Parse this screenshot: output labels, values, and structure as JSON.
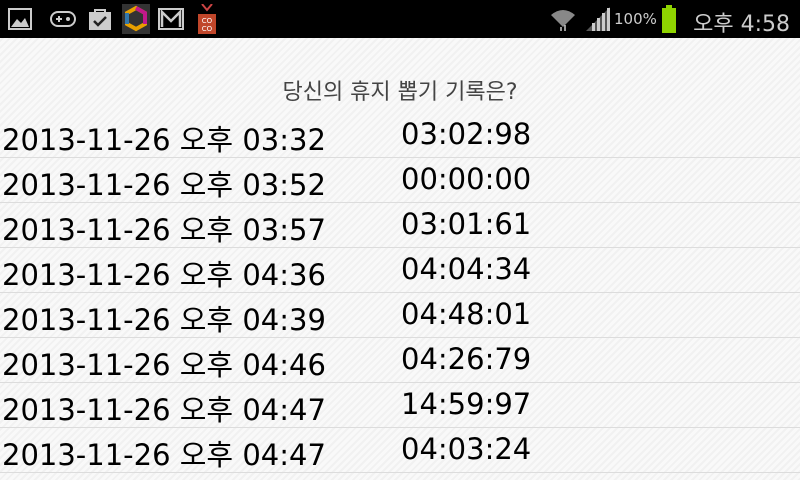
{
  "status_bar": {
    "battery": "100%",
    "time": "오후 4:58",
    "icons": [
      "gallery-icon",
      "gamepad-icon",
      "shopping-bag-icon",
      "app-hexagon-icon",
      "gmail-icon",
      "coco-icon",
      "wifi-icon",
      "signal-icon",
      "battery-icon"
    ],
    "battery_color": "#8fd400"
  },
  "title": "당신의 휴지 뽑기 기록은?",
  "records": [
    {
      "date": "2013-11-26 오후 03:32",
      "value": "03:02:98"
    },
    {
      "date": "2013-11-26 오후 03:52",
      "value": "00:00:00"
    },
    {
      "date": "2013-11-26 오후 03:57",
      "value": "03:01:61"
    },
    {
      "date": "2013-11-26 오후 04:36",
      "value": "04:04:34"
    },
    {
      "date": "2013-11-26 오후 04:39",
      "value": "04:48:01"
    },
    {
      "date": "2013-11-26 오후 04:46",
      "value": "04:26:79"
    },
    {
      "date": "2013-11-26 오후 04:47",
      "value": "14:59:97"
    },
    {
      "date": "2013-11-26 오후 04:47",
      "value": "04:03:24"
    }
  ]
}
